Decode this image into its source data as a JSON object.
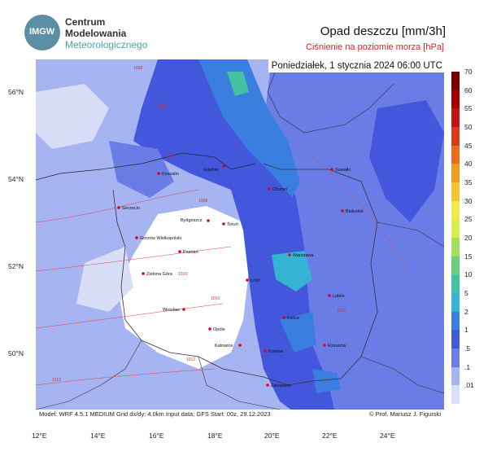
{
  "header": {
    "logo_text": "IMGW",
    "org_line1": "Centrum",
    "org_line2": "Modelowania",
    "org_line3": "Meteorologicznego",
    "title": "Opad deszczu [mm/3h]",
    "subtitle": "Ciśnienie na poziomie morza [hPa]",
    "date": "Poniedziałek, 1 stycznia 2024 06:00 UTC"
  },
  "footer": {
    "left": "Model: WRF 4.5.1 MEDIUM   Grid dx/dy: 4.0km   Input data: GFS   Start: 00z, 29.12.2023",
    "right": "© Prof. Mariusz J. Figurski"
  },
  "lat_labels": [
    "56°N",
    "54°N",
    "52°N",
    "50°N"
  ],
  "lon_labels": [
    "12°E",
    "14°E",
    "16°E",
    "18°E",
    "20°E",
    "22°E",
    "24°E"
  ],
  "colorbar": {
    "labels": [
      "70",
      "60",
      "55",
      "50",
      "45",
      "40",
      "35",
      "30",
      "25",
      "20",
      "15",
      "10",
      "5",
      "2",
      "1",
      ".5",
      ".1",
      ".01"
    ],
    "colors": [
      "#7a0000",
      "#a30000",
      "#c21212",
      "#d93a1a",
      "#ee6a1c",
      "#f29a20",
      "#f5c52b",
      "#f2e84a",
      "#d8ee4c",
      "#a6e05a",
      "#6cd07a",
      "#42c2a0",
      "#35b4d2",
      "#3a7fe0",
      "#4357dc",
      "#6a7ce6",
      "#a7b4f2",
      "#d8ddf8"
    ]
  },
  "cities": [
    {
      "name": "Gdańsk"
    },
    {
      "name": "Koszalin"
    },
    {
      "name": "Szczecin"
    },
    {
      "name": "Olsztyn"
    },
    {
      "name": "Suwałki"
    },
    {
      "name": "Białystok"
    },
    {
      "name": "Bydgoszcz"
    },
    {
      "name": "Toruń"
    },
    {
      "name": "Gorzów Wielkopolski"
    },
    {
      "name": "Poznań"
    },
    {
      "name": "Warszawa"
    },
    {
      "name": "Zielona Góra"
    },
    {
      "name": "Łódź"
    },
    {
      "name": "Lublin"
    },
    {
      "name": "Wrocław"
    },
    {
      "name": "Kielce"
    },
    {
      "name": "Opole"
    },
    {
      "name": "Katowice"
    },
    {
      "name": "Kraków"
    },
    {
      "name": "Rzeszów"
    },
    {
      "name": "Zakopane"
    }
  ],
  "isobars": [
    "1008",
    "1008",
    "1008",
    "1008",
    "1010",
    "1010",
    "1012",
    "1012",
    "1016"
  ]
}
